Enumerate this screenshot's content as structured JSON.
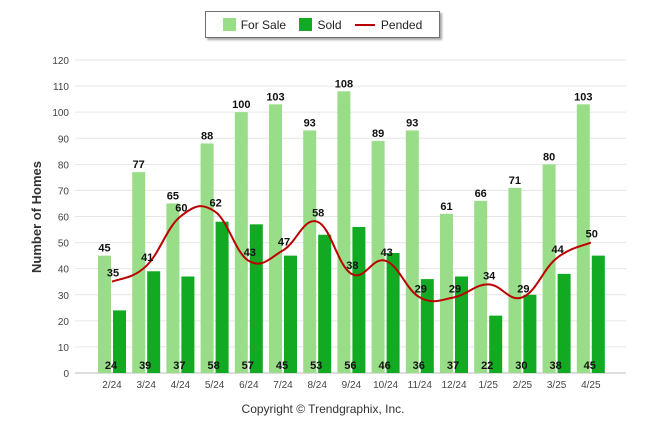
{
  "chart_data": {
    "type": "bar",
    "ylabel": "Number of Homes",
    "xlabel": "",
    "ylim": [
      0,
      120
    ],
    "yticks": [
      0,
      10,
      20,
      30,
      40,
      50,
      60,
      70,
      80,
      90,
      100,
      110,
      120
    ],
    "grid": true,
    "legend_position": "top-center",
    "categories": [
      "2/24",
      "3/24",
      "4/24",
      "5/24",
      "6/24",
      "7/24",
      "8/24",
      "9/24",
      "10/24",
      "11/24",
      "12/24",
      "1/25",
      "2/25",
      "3/25",
      "4/25"
    ],
    "series": [
      {
        "name": "For Sale",
        "kind": "bar",
        "color": "#99dd88",
        "values": [
          45,
          77,
          65,
          88,
          100,
          103,
          93,
          108,
          89,
          93,
          61,
          66,
          71,
          80,
          103
        ]
      },
      {
        "name": "Sold",
        "kind": "bar",
        "color": "#11aa22",
        "values": [
          24,
          39,
          37,
          58,
          57,
          45,
          53,
          56,
          46,
          36,
          37,
          22,
          30,
          38,
          45
        ]
      },
      {
        "name": "Pended",
        "kind": "line",
        "color": "#bb0000",
        "values": [
          35,
          41,
          60,
          62,
          43,
          47,
          58,
          38,
          43,
          29,
          29,
          34,
          29,
          44,
          50
        ]
      }
    ]
  },
  "copyright": "Copyright © Trendgraphix, Inc."
}
